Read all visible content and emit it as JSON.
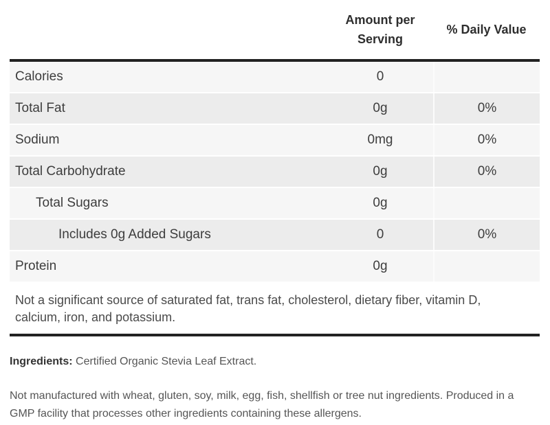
{
  "table": {
    "header": {
      "amount_lines": [
        "Amount per",
        "Serving"
      ],
      "daily": "% Daily Value"
    },
    "rows": [
      {
        "label": "Calories",
        "amount": "0",
        "daily": ""
      },
      {
        "label": "Total Fat",
        "amount": "0g",
        "daily": "0%"
      },
      {
        "label": "Sodium",
        "amount": "0mg",
        "daily": "0%"
      },
      {
        "label": "Total Carbohydrate",
        "amount": "0g",
        "daily": "0%"
      },
      {
        "label": "Total Sugars",
        "amount": "0g",
        "daily": ""
      },
      {
        "label": "Includes 0g Added Sugars",
        "amount": "0",
        "daily": "0%"
      },
      {
        "label": "Protein",
        "amount": "0g",
        "daily": ""
      }
    ],
    "footnote_lines": [
      "Not a significant source of saturated fat, trans fat, cholesterol, dietary fiber, vitamin D,",
      "calcium, iron, and potassium."
    ]
  },
  "ingredients": {
    "label": "Ingredients:",
    "text": " Certified Organic Stevia Leaf Extract."
  },
  "allergen_lines": [
    "Not manufactured with wheat, gluten, soy, milk, egg, fish, shellfish or tree nut ingredients. Produced in a",
    "GMP facility that processes other ingredients containing these allergens."
  ],
  "colors": {
    "border": "#222222",
    "row_light": "#f6f6f6",
    "row_dark": "#ececec",
    "text_dark": "#3d3d3d",
    "text_muted": "#555555"
  }
}
